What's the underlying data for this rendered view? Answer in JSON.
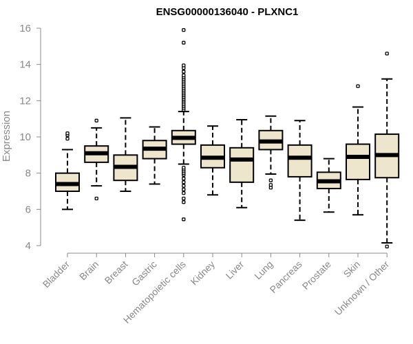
{
  "chart_data": {
    "type": "boxplot",
    "title": "ENSG00000136040 - PLXNC1",
    "ylabel": "Expression",
    "xlabel": "",
    "ylim": [
      4,
      16
    ],
    "yticks": [
      4,
      6,
      8,
      10,
      12,
      14,
      16
    ],
    "colors": {
      "box_fill": "#ede5cc",
      "stroke": "#000000",
      "axis": "#888888"
    },
    "categories": [
      "Bladder",
      "Brain",
      "Breast",
      "Gastric",
      "Hematopoietic cells",
      "Kidney",
      "Liver",
      "Lung",
      "Pancreas",
      "Prostate",
      "Skin",
      "Unknown / Other"
    ],
    "boxes": [
      {
        "name": "Bladder",
        "whisker_low": 6.0,
        "q1": 7.0,
        "median": 7.4,
        "q3": 8.0,
        "whisker_high": 9.3,
        "outliers": [
          9.9,
          10.1,
          10.2
        ]
      },
      {
        "name": "Brain",
        "whisker_low": 7.3,
        "q1": 8.6,
        "median": 9.1,
        "q3": 9.5,
        "whisker_high": 10.5,
        "outliers": [
          6.6,
          10.9
        ]
      },
      {
        "name": "Breast",
        "whisker_low": 7.0,
        "q1": 7.6,
        "median": 8.35,
        "q3": 9.0,
        "whisker_high": 11.05,
        "outliers": []
      },
      {
        "name": "Gastric",
        "whisker_low": 7.4,
        "q1": 8.8,
        "median": 9.35,
        "q3": 9.8,
        "whisker_high": 10.55,
        "outliers": []
      },
      {
        "name": "Hematopoietic cells",
        "whisker_low": 8.5,
        "q1": 9.6,
        "median": 9.95,
        "q3": 10.35,
        "whisker_high": 11.4,
        "outliers": [
          5.45,
          6.4,
          6.6,
          6.9,
          7.1,
          7.3,
          7.5,
          7.7,
          7.9,
          8.0,
          8.1,
          8.2,
          8.3,
          11.5,
          11.6,
          11.7,
          11.8,
          11.9,
          12.0,
          12.1,
          12.2,
          12.3,
          12.4,
          12.5,
          12.6,
          12.7,
          12.8,
          12.9,
          13.0,
          13.1,
          13.2,
          13.3,
          13.4,
          13.6,
          13.8,
          13.95,
          15.2,
          15.9
        ]
      },
      {
        "name": "Kidney",
        "whisker_low": 6.8,
        "q1": 8.3,
        "median": 8.85,
        "q3": 9.55,
        "whisker_high": 10.6,
        "outliers": []
      },
      {
        "name": "Liver",
        "whisker_low": 6.1,
        "q1": 7.5,
        "median": 8.75,
        "q3": 9.4,
        "whisker_high": 10.95,
        "outliers": []
      },
      {
        "name": "Lung",
        "whisker_low": 7.95,
        "q1": 9.3,
        "median": 9.75,
        "q3": 10.35,
        "whisker_high": 11.15,
        "outliers": [
          7.2,
          7.35,
          7.6
        ]
      },
      {
        "name": "Pancreas",
        "whisker_low": 5.4,
        "q1": 7.8,
        "median": 8.85,
        "q3": 9.55,
        "whisker_high": 10.9,
        "outliers": []
      },
      {
        "name": "Prostate",
        "whisker_low": 5.85,
        "q1": 7.15,
        "median": 7.55,
        "q3": 8.05,
        "whisker_high": 8.8,
        "outliers": []
      },
      {
        "name": "Skin",
        "whisker_low": 5.7,
        "q1": 7.65,
        "median": 8.9,
        "q3": 9.6,
        "whisker_high": 11.65,
        "outliers": [
          12.8
        ]
      },
      {
        "name": "Unknown / Other",
        "whisker_low": 4.15,
        "q1": 7.75,
        "median": 9.0,
        "q3": 10.15,
        "whisker_high": 13.2,
        "outliers": [
          3.95,
          14.6
        ]
      }
    ]
  }
}
